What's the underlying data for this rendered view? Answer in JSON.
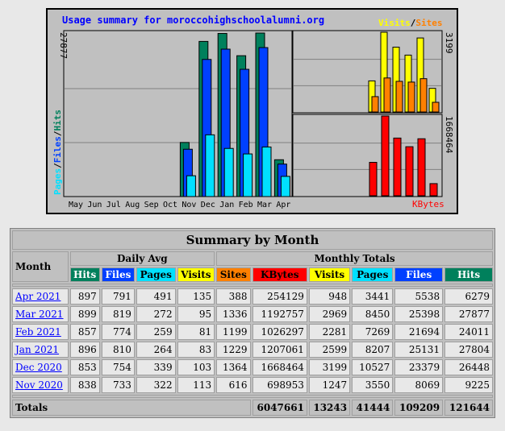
{
  "graph": {
    "title": "Usage summary for moroccohighschoolalumni.org",
    "legend_visits": "Visits",
    "legend_sep": "/",
    "legend_sites": "Sites",
    "left_max": "27877",
    "left_label": {
      "pages": "Pages",
      "files": "Files",
      "hits": "Hits",
      "sep": "/"
    },
    "right_top_max": "3199",
    "right_bottom_max": "1668464",
    "kbytes_label": "KBytes",
    "months": [
      "May",
      "Jun",
      "Jul",
      "Aug",
      "Sep",
      "Oct",
      "Nov",
      "Dec",
      "Jan",
      "Feb",
      "Mar",
      "Apr"
    ]
  },
  "colors": {
    "hits": "#00805c",
    "files": "#0040ff",
    "pages": "#00e0ff",
    "visits": "#ffff00",
    "sites": "#ff8000",
    "kbytes": "#ff0000",
    "title": "#0000ff"
  },
  "chart_data": {
    "type": "bar",
    "categories": [
      "May",
      "Jun",
      "Jul",
      "Aug",
      "Sep",
      "Oct",
      "Nov",
      "Dec",
      "Jan",
      "Feb",
      "Mar",
      "Apr"
    ],
    "series": [
      {
        "name": "Hits",
        "values": [
          0,
          0,
          0,
          0,
          0,
          0,
          9225,
          26448,
          27804,
          24011,
          27877,
          6279
        ]
      },
      {
        "name": "Files",
        "values": [
          0,
          0,
          0,
          0,
          0,
          0,
          8069,
          23379,
          25131,
          21694,
          25398,
          5538
        ]
      },
      {
        "name": "Pages",
        "values": [
          0,
          0,
          0,
          0,
          0,
          0,
          3550,
          10527,
          8207,
          7269,
          8450,
          3441
        ]
      },
      {
        "name": "Visits",
        "values": [
          0,
          0,
          0,
          0,
          0,
          0,
          1247,
          3199,
          2599,
          2281,
          2969,
          948
        ]
      },
      {
        "name": "Sites",
        "values": [
          0,
          0,
          0,
          0,
          0,
          0,
          616,
          1364,
          1229,
          1199,
          1336,
          388
        ]
      },
      {
        "name": "KBytes",
        "values": [
          0,
          0,
          0,
          0,
          0,
          0,
          698953,
          1668464,
          1207061,
          1026297,
          1192757,
          254129
        ]
      }
    ]
  },
  "table": {
    "title": "Summary by Month",
    "month_header": "Month",
    "daily_avg": "Daily Avg",
    "monthly_totals": "Monthly Totals",
    "cols_daily": [
      "Hits",
      "Files",
      "Pages",
      "Visits"
    ],
    "cols_monthly": [
      "Sites",
      "KBytes",
      "Visits",
      "Pages",
      "Files",
      "Hits"
    ],
    "rows": [
      {
        "month": "Apr 2021",
        "d": [
          "897",
          "791",
          "491",
          "135"
        ],
        "m": [
          "388",
          "254129",
          "948",
          "3441",
          "5538",
          "6279"
        ]
      },
      {
        "month": "Mar 2021",
        "d": [
          "899",
          "819",
          "272",
          "95"
        ],
        "m": [
          "1336",
          "1192757",
          "2969",
          "8450",
          "25398",
          "27877"
        ]
      },
      {
        "month": "Feb 2021",
        "d": [
          "857",
          "774",
          "259",
          "81"
        ],
        "m": [
          "1199",
          "1026297",
          "2281",
          "7269",
          "21694",
          "24011"
        ]
      },
      {
        "month": "Jan 2021",
        "d": [
          "896",
          "810",
          "264",
          "83"
        ],
        "m": [
          "1229",
          "1207061",
          "2599",
          "8207",
          "25131",
          "27804"
        ]
      },
      {
        "month": "Dec 2020",
        "d": [
          "853",
          "754",
          "339",
          "103"
        ],
        "m": [
          "1364",
          "1668464",
          "3199",
          "10527",
          "23379",
          "26448"
        ]
      },
      {
        "month": "Nov 2020",
        "d": [
          "838",
          "733",
          "322",
          "113"
        ],
        "m": [
          "616",
          "698953",
          "1247",
          "3550",
          "8069",
          "9225"
        ]
      }
    ],
    "totals_label": "Totals",
    "totals": [
      "6047661",
      "13243",
      "41444",
      "109209",
      "121644"
    ]
  }
}
